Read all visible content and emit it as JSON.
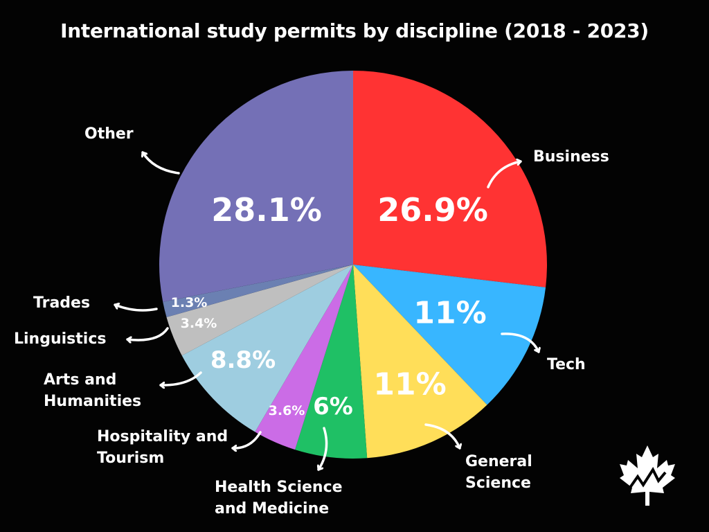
{
  "chart_data": {
    "type": "pie",
    "title": "International study permits by discipline (2018 - 2023)",
    "start_angle": "12 o'clock",
    "direction": "clockwise",
    "legend": "callout labels with arrows",
    "categories": [
      "Business",
      "Tech",
      "General Science",
      "Health Science and Medicine",
      "Hospitality and Tourism",
      "Arts and Humanities",
      "Linguistics",
      "Trades",
      "Other"
    ],
    "values": [
      26.9,
      11,
      11,
      6,
      3.6,
      8.8,
      3.4,
      1.3,
      28.1
    ],
    "value_labels": [
      "26.9%",
      "11%",
      "11%",
      "6%",
      "3.6%",
      "8.8%",
      "3.4%",
      "1.3%",
      "28.1%"
    ],
    "colors": [
      "#ff3333",
      "#38b6ff",
      "#ffde59",
      "#1fc065",
      "#cb6ce6",
      "#9ecde0",
      "#bfbfbf",
      "#6b80b2",
      "#7470b6"
    ]
  },
  "logo": {
    "icon": "maple-leaf-chart-icon",
    "color": "#ffffff"
  }
}
